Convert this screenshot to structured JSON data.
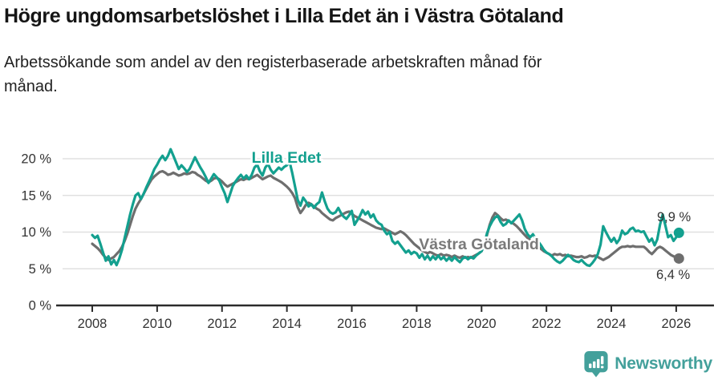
{
  "header": {
    "title": "Högre ungdomsarbetslöshet i Lilla Edet än i Västra Götaland",
    "subtitle_line1": "Arbetssökande som andel av den registerbaserade arbetskraften månad för",
    "subtitle_line2": "månad."
  },
  "footer": {
    "brand": "Newsworthy",
    "brand_color": "#43a09b",
    "logo_icon": "chart-pin-icon"
  },
  "colors": {
    "accent_teal": "#13a08f",
    "series_gray": "#6e6e6e",
    "grid": "#e0e0e0",
    "axis": "#2b2b2b",
    "text_dark": "#333333",
    "label_gray": "#7a7a7a"
  },
  "chart_data": {
    "type": "line",
    "title": "Högre ungdomsarbetslöshet i Lilla Edet än i Västra Götaland",
    "xlabel": "",
    "ylabel": "",
    "x_start": 2008.0,
    "x_step": 0.0833,
    "x_axis": {
      "ticks": [
        2008,
        2010,
        2012,
        2014,
        2016,
        2018,
        2020,
        2022,
        2024,
        2026
      ]
    },
    "y_axis": {
      "tick_labels": [
        "0 %",
        "5 %",
        "10 %",
        "15 %",
        "20 %"
      ],
      "tick_values": [
        0,
        5,
        10,
        15,
        20
      ]
    },
    "ylim": [
      0,
      22
    ],
    "grid": "horizontal",
    "legend_position": "inline-labels",
    "series": [
      {
        "name": "Västra Götaland",
        "color": "#6e6e6e",
        "end_label": "6,4 %",
        "end_value": 6.4,
        "values": [
          8.4,
          8.1,
          7.8,
          7.4,
          6.9,
          6.5,
          6.2,
          6.4,
          6.6,
          7.0,
          7.4,
          8.0,
          8.8,
          9.8,
          11.0,
          12.2,
          13.2,
          13.9,
          14.5,
          15.2,
          15.9,
          16.6,
          17.2,
          17.6,
          17.9,
          18.2,
          18.3,
          18.1,
          17.8,
          17.9,
          18.1,
          17.9,
          17.7,
          17.8,
          18.0,
          17.9,
          18.0,
          18.2,
          18.1,
          17.8,
          17.6,
          17.3,
          17.0,
          16.8,
          17.0,
          17.3,
          17.4,
          17.2,
          16.9,
          16.5,
          16.2,
          16.4,
          16.6,
          16.8,
          17.0,
          17.2,
          17.1,
          17.3,
          17.2,
          17.4,
          17.6,
          17.8,
          17.5,
          17.2,
          17.4,
          17.6,
          17.7,
          17.4,
          17.2,
          17.0,
          16.8,
          16.5,
          16.2,
          15.8,
          15.3,
          14.6,
          13.4,
          12.6,
          13.1,
          13.7,
          14.0,
          13.8,
          13.5,
          13.2,
          13.0,
          12.6,
          12.3,
          12.0,
          11.7,
          11.6,
          11.9,
          12.1,
          12.3,
          12.5,
          12.7,
          12.8,
          12.5,
          12.2,
          12.0,
          11.8,
          11.6,
          11.4,
          11.2,
          11.0,
          10.8,
          10.6,
          10.5,
          10.4,
          10.5,
          10.3,
          10.1,
          9.9,
          9.7,
          9.9,
          10.1,
          9.9,
          9.6,
          9.2,
          8.8,
          8.4,
          8.1,
          7.8,
          7.5,
          7.3,
          7.1,
          7.3,
          7.1,
          6.9,
          6.8,
          7.0,
          6.8,
          6.9,
          6.8,
          6.6,
          6.8,
          6.6,
          6.5,
          6.7,
          6.5,
          6.6,
          6.5,
          6.7,
          6.9,
          7.1,
          7.4,
          8.2,
          9.6,
          11.0,
          12.0,
          12.6,
          12.3,
          11.9,
          11.6,
          11.7,
          11.5,
          11.3,
          11.1,
          10.8,
          10.4,
          10.0,
          9.6,
          9.2,
          8.9,
          8.6,
          8.3,
          8.0,
          7.7,
          7.4,
          7.2,
          7.0,
          6.8,
          7.0,
          6.9,
          7.0,
          6.8,
          6.9,
          6.7,
          6.8,
          6.7,
          6.6,
          6.6,
          6.7,
          6.5,
          6.6,
          6.8,
          6.7,
          6.8,
          6.6,
          6.4,
          6.2,
          6.4,
          6.6,
          6.9,
          7.2,
          7.5,
          7.8,
          8.0,
          8.0,
          8.1,
          8.0,
          8.1,
          8.0,
          8.0,
          8.0,
          8.0,
          7.7,
          7.3,
          7.0,
          7.4,
          7.8,
          8.0,
          7.8,
          7.5,
          7.2,
          6.9,
          6.7,
          6.5,
          6.4
        ]
      },
      {
        "name": "Lilla Edet",
        "color": "#13a08f",
        "end_label": "9,9 %",
        "end_value": 9.9,
        "values": [
          9.6,
          9.2,
          9.5,
          8.4,
          7.2,
          6.1,
          6.7,
          5.6,
          6.2,
          5.5,
          6.4,
          7.6,
          9.2,
          10.8,
          12.4,
          13.8,
          15.0,
          15.3,
          14.5,
          15.2,
          16.1,
          16.9,
          17.7,
          18.6,
          19.2,
          19.9,
          20.4,
          19.8,
          20.4,
          21.3,
          20.4,
          19.5,
          18.6,
          19.1,
          18.7,
          18.2,
          18.6,
          19.4,
          20.2,
          19.5,
          18.8,
          18.2,
          17.5,
          16.7,
          17.3,
          17.9,
          17.5,
          17.0,
          16.1,
          15.3,
          14.1,
          15.2,
          16.3,
          16.9,
          17.4,
          17.8,
          17.3,
          17.7,
          17.2,
          17.8,
          18.8,
          19.2,
          18.3,
          17.7,
          18.8,
          19.3,
          18.5,
          18.0,
          18.4,
          18.8,
          18.5,
          18.9,
          19.1,
          19.6,
          18.0,
          16.2,
          14.4,
          13.6,
          14.7,
          14.2,
          13.5,
          13.8,
          13.3,
          13.8,
          14.1,
          15.4,
          14.2,
          13.2,
          12.7,
          12.5,
          12.7,
          13.3,
          12.6,
          12.1,
          11.8,
          12.3,
          12.9,
          11.0,
          11.6,
          12.2,
          13.0,
          12.4,
          12.8,
          12.0,
          12.4,
          11.6,
          11.2,
          11.0,
          10.2,
          9.7,
          10.0,
          8.8,
          8.4,
          8.7,
          8.2,
          7.7,
          7.2,
          7.5,
          7.0,
          7.3,
          7.1,
          6.5,
          7.0,
          6.3,
          6.8,
          6.2,
          6.7,
          6.3,
          6.8,
          6.3,
          6.6,
          6.1,
          6.5,
          6.1,
          6.6,
          6.2,
          5.9,
          6.4,
          6.6,
          6.3,
          6.6,
          6.4,
          6.8,
          7.1,
          7.4,
          8.3,
          9.8,
          10.8,
          11.5,
          12.0,
          12.2,
          11.4,
          10.9,
          11.1,
          11.6,
          11.2,
          11.6,
          12.0,
          12.4,
          11.6,
          10.4,
          9.7,
          9.3,
          9.7,
          9.1,
          8.7,
          8.2,
          7.6,
          7.2,
          7.0,
          6.7,
          6.3,
          6.0,
          5.8,
          6.1,
          6.5,
          6.9,
          6.6,
          6.2,
          6.0,
          5.9,
          6.2,
          5.8,
          5.5,
          5.4,
          5.8,
          6.3,
          7.0,
          8.3,
          10.8,
          10.0,
          9.3,
          8.7,
          9.2,
          8.5,
          9.0,
          10.2,
          9.7,
          9.9,
          10.4,
          10.6,
          10.1,
          10.2,
          10.0,
          10.1,
          9.4,
          8.7,
          9.1,
          8.2,
          9.0,
          11.0,
          12.4,
          10.9,
          9.3,
          9.6,
          8.8,
          9.3,
          9.9
        ]
      }
    ]
  }
}
